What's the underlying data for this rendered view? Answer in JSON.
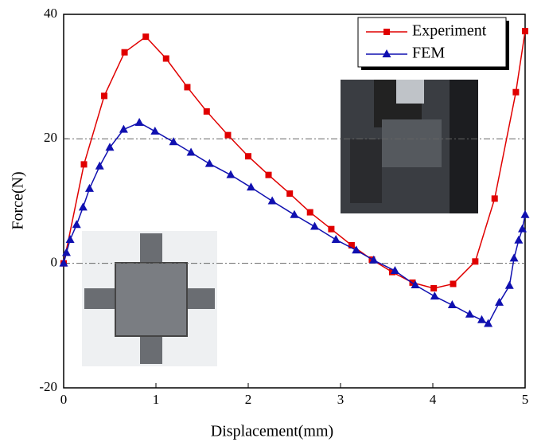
{
  "chart_data": {
    "type": "line",
    "xlabel": "Displacement(mm)",
    "ylabel": "Force(N)",
    "xlim": [
      0,
      5
    ],
    "ylim": [
      -20,
      40
    ],
    "xticks": [
      0,
      1,
      2,
      3,
      4,
      5
    ],
    "yticks": [
      -20,
      0,
      20,
      40
    ],
    "grid": true,
    "legend": "upper right",
    "series": [
      {
        "name": "Experiment",
        "color": "#e00000",
        "marker": "square",
        "x": [
          0,
          0.22,
          0.44,
          0.66,
          0.89,
          1.11,
          1.34,
          1.55,
          1.78,
          2.0,
          2.22,
          2.45,
          2.67,
          2.9,
          3.12,
          3.34,
          3.56,
          3.78,
          4.01,
          4.22,
          4.46,
          4.67,
          4.9,
          5.0
        ],
        "values": [
          0,
          15.9,
          26.9,
          33.9,
          36.4,
          32.9,
          28.3,
          24.4,
          20.6,
          17.2,
          14.2,
          11.2,
          8.2,
          5.5,
          2.9,
          0.6,
          -1.4,
          -3.1,
          -4.0,
          -3.3,
          0.3,
          10.4,
          27.5,
          37.3
        ]
      },
      {
        "name": "FEM",
        "color": "#1010b0",
        "marker": "triangle",
        "x": [
          0,
          0.03,
          0.07,
          0.14,
          0.21,
          0.28,
          0.39,
          0.5,
          0.65,
          0.82,
          0.99,
          1.19,
          1.38,
          1.58,
          1.81,
          2.03,
          2.26,
          2.5,
          2.72,
          2.95,
          3.17,
          3.36,
          3.59,
          3.81,
          4.02,
          4.21,
          4.4,
          4.53,
          4.6,
          4.72,
          4.83,
          4.88,
          4.93,
          4.97,
          5.0
        ],
        "values": [
          0,
          1.7,
          3.8,
          6.2,
          9.0,
          12.0,
          15.6,
          18.6,
          21.5,
          22.6,
          21.2,
          19.5,
          17.8,
          16.0,
          14.2,
          12.2,
          10.0,
          7.8,
          5.9,
          3.8,
          2.1,
          0.5,
          -1.2,
          -3.5,
          -5.3,
          -6.7,
          -8.2,
          -9.1,
          -9.7,
          -6.3,
          -3.6,
          0.8,
          3.7,
          5.5,
          7.8
        ]
      }
    ]
  }
}
